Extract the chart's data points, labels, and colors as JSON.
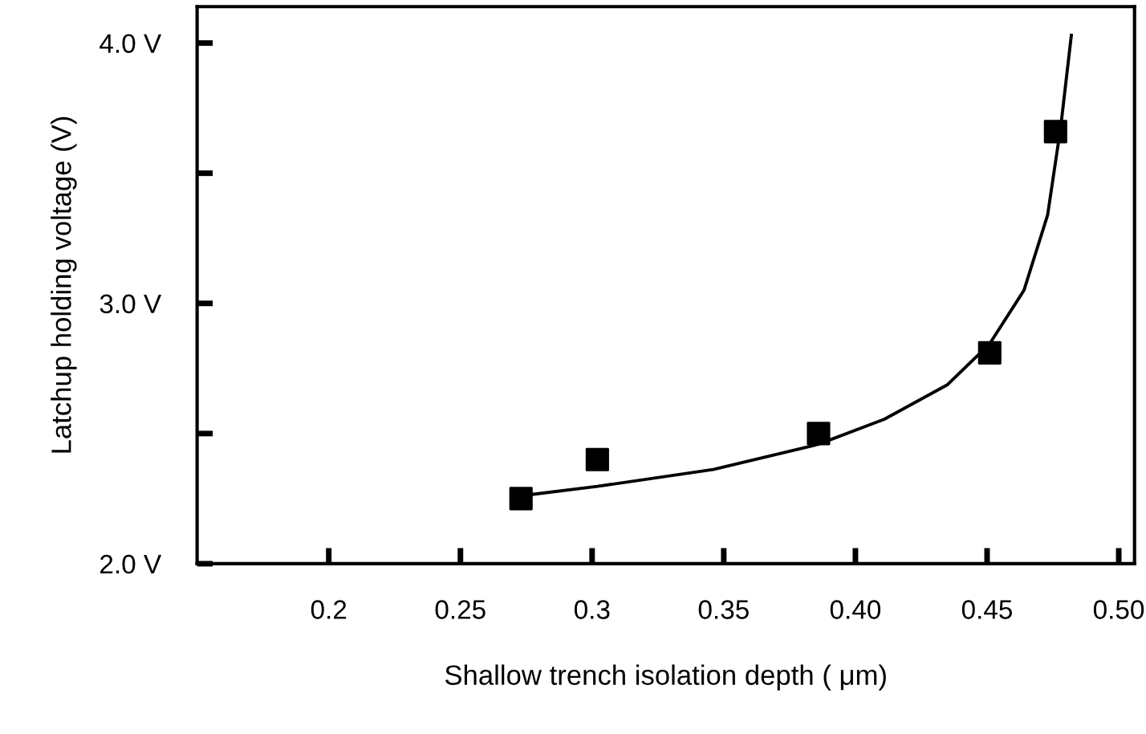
{
  "chart_data": {
    "type": "scatter",
    "xlabel": "Shallow trench isolation depth ( μm)",
    "ylabel": "Latchup holding voltage (V)",
    "xlim": [
      0.15,
      0.506
    ],
    "ylim": [
      2.0,
      4.14
    ],
    "xticks": [
      {
        "value": 0.2,
        "label": "0.2"
      },
      {
        "value": 0.25,
        "label": "0.25"
      },
      {
        "value": 0.3,
        "label": "0.3"
      },
      {
        "value": 0.35,
        "label": "0.35"
      },
      {
        "value": 0.4,
        "label": "0.40"
      },
      {
        "value": 0.45,
        "label": "0.45"
      },
      {
        "value": 0.5,
        "label": "0.50"
      }
    ],
    "yticks": [
      {
        "value": 2.0,
        "label": "2.0 V"
      },
      {
        "value": 2.5,
        "label": null
      },
      {
        "value": 3.0,
        "label": "3.0 V"
      },
      {
        "value": 3.5,
        "label": null
      },
      {
        "value": 4.0,
        "label": "4.0 V"
      }
    ],
    "grid": false,
    "legend": false,
    "series": [
      {
        "marker": "square",
        "color": "#000000",
        "x": [
          0.273,
          0.302,
          0.386,
          0.451,
          0.476
        ],
        "values": [
          2.25,
          2.4,
          2.5,
          2.81,
          3.66
        ]
      },
      {
        "type": "line",
        "marker": "none",
        "line_style": "solid",
        "color": "#000000",
        "x": [
          0.277,
          0.302,
          0.346,
          0.386,
          0.411,
          0.435,
          0.451,
          0.464,
          0.473,
          0.478,
          0.482
        ],
        "values": [
          2.266,
          2.297,
          2.362,
          2.459,
          2.555,
          2.688,
          2.845,
          3.05,
          3.34,
          3.68,
          4.03
        ]
      }
    ]
  }
}
